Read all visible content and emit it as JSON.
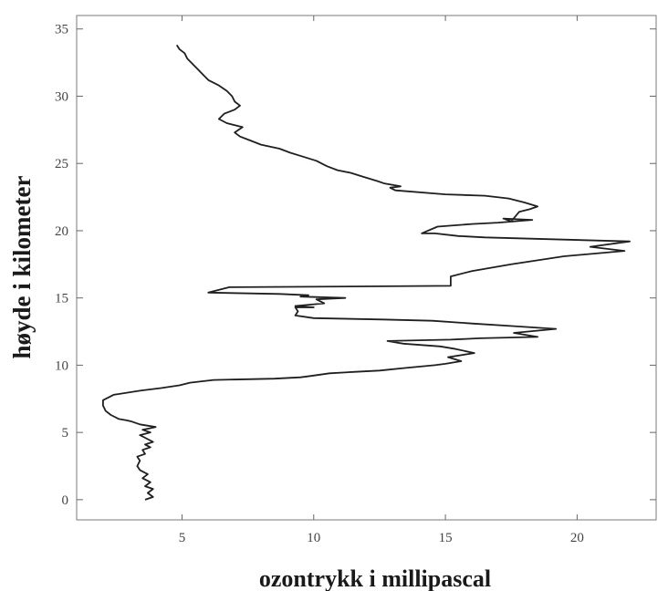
{
  "chart_data": {
    "type": "line",
    "title": "",
    "xlabel": "ozontrykk i millipascal",
    "ylabel": "høyde i kilometer",
    "xlim": [
      1,
      23
    ],
    "ylim": [
      -1.5,
      36
    ],
    "xticks": [
      5,
      10,
      15,
      20
    ],
    "yticks": [
      0,
      5,
      10,
      15,
      20,
      25,
      30,
      35
    ],
    "grid": false,
    "legend": "none",
    "line_color": "#1f1f1f",
    "series": [
      {
        "points": [
          [
            3.6,
            0.0
          ],
          [
            3.9,
            0.2
          ],
          [
            3.7,
            0.5
          ],
          [
            3.9,
            0.8
          ],
          [
            3.6,
            1.0
          ],
          [
            3.8,
            1.3
          ],
          [
            3.5,
            1.6
          ],
          [
            3.7,
            1.9
          ],
          [
            3.4,
            2.2
          ],
          [
            3.3,
            2.5
          ],
          [
            3.4,
            2.9
          ],
          [
            3.3,
            3.2
          ],
          [
            3.6,
            3.4
          ],
          [
            3.5,
            3.7
          ],
          [
            3.8,
            3.9
          ],
          [
            3.6,
            4.1
          ],
          [
            3.9,
            4.3
          ],
          [
            3.6,
            4.6
          ],
          [
            3.4,
            4.8
          ],
          [
            3.8,
            5.0
          ],
          [
            3.5,
            5.2
          ],
          [
            4.0,
            5.4
          ],
          [
            3.4,
            5.6
          ],
          [
            3.1,
            5.8
          ],
          [
            2.9,
            5.9
          ],
          [
            2.6,
            6.0
          ],
          [
            2.3,
            6.3
          ],
          [
            2.1,
            6.6
          ],
          [
            2.0,
            7.0
          ],
          [
            2.0,
            7.4
          ],
          [
            2.4,
            7.8
          ],
          [
            3.4,
            8.1
          ],
          [
            4.2,
            8.3
          ],
          [
            4.9,
            8.5
          ],
          [
            5.3,
            8.7
          ],
          [
            6.2,
            8.9
          ],
          [
            8.5,
            9.0
          ],
          [
            9.5,
            9.1
          ],
          [
            9.9,
            9.2
          ],
          [
            10.6,
            9.4
          ],
          [
            11.5,
            9.5
          ],
          [
            12.5,
            9.6
          ],
          [
            13.5,
            9.8
          ],
          [
            14.6,
            10.0
          ],
          [
            15.0,
            10.1
          ],
          [
            15.6,
            10.3
          ],
          [
            15.1,
            10.6
          ],
          [
            16.1,
            10.9
          ],
          [
            15.4,
            11.2
          ],
          [
            14.8,
            11.4
          ],
          [
            13.4,
            11.6
          ],
          [
            12.8,
            11.8
          ],
          [
            15.2,
            11.9
          ],
          [
            16.3,
            12.0
          ],
          [
            18.5,
            12.1
          ],
          [
            17.6,
            12.4
          ],
          [
            19.2,
            12.7
          ],
          [
            17.6,
            12.9
          ],
          [
            16.0,
            13.1
          ],
          [
            14.5,
            13.3
          ],
          [
            12.6,
            13.4
          ],
          [
            10.0,
            13.5
          ],
          [
            9.3,
            13.7
          ],
          [
            9.4,
            14.0
          ],
          [
            9.3,
            14.3
          ],
          [
            10.0,
            14.3
          ],
          [
            9.3,
            14.4
          ],
          [
            10.4,
            14.6
          ],
          [
            10.1,
            14.9
          ],
          [
            11.2,
            15.0
          ],
          [
            9.5,
            15.1
          ],
          [
            9.8,
            15.2
          ],
          [
            8.7,
            15.3
          ],
          [
            6.0,
            15.4
          ],
          [
            6.8,
            15.8
          ],
          [
            15.2,
            15.9
          ],
          [
            15.2,
            16.6
          ],
          [
            16.0,
            17.0
          ],
          [
            17.5,
            17.5
          ],
          [
            19.5,
            18.1
          ],
          [
            21.8,
            18.5
          ],
          [
            20.5,
            18.8
          ],
          [
            22.0,
            19.2
          ],
          [
            16.5,
            19.5
          ],
          [
            15.5,
            19.6
          ],
          [
            14.6,
            19.8
          ],
          [
            14.1,
            19.8
          ],
          [
            14.7,
            20.3
          ],
          [
            16.0,
            20.5
          ],
          [
            17.0,
            20.6
          ],
          [
            18.3,
            20.8
          ],
          [
            17.2,
            20.9
          ],
          [
            17.5,
            20.7
          ],
          [
            17.8,
            21.4
          ],
          [
            18.2,
            21.6
          ],
          [
            18.5,
            21.8
          ],
          [
            18.0,
            22.1
          ],
          [
            17.4,
            22.4
          ],
          [
            16.5,
            22.6
          ],
          [
            15.0,
            22.7
          ],
          [
            13.1,
            23.0
          ],
          [
            12.9,
            23.2
          ],
          [
            13.3,
            23.3
          ],
          [
            12.7,
            23.5
          ],
          [
            12.4,
            23.7
          ],
          [
            11.9,
            24.0
          ],
          [
            11.4,
            24.3
          ],
          [
            10.9,
            24.5
          ],
          [
            10.5,
            24.8
          ],
          [
            10.1,
            25.2
          ],
          [
            9.6,
            25.5
          ],
          [
            9.1,
            25.8
          ],
          [
            8.7,
            26.1
          ],
          [
            8.0,
            26.4
          ],
          [
            7.6,
            26.7
          ],
          [
            7.2,
            27.0
          ],
          [
            7.0,
            27.3
          ],
          [
            7.3,
            27.7
          ],
          [
            6.7,
            28.0
          ],
          [
            6.4,
            28.3
          ],
          [
            6.6,
            28.7
          ],
          [
            7.0,
            29.0
          ],
          [
            7.2,
            29.3
          ],
          [
            7.0,
            29.6
          ],
          [
            6.9,
            30.0
          ],
          [
            6.7,
            30.4
          ],
          [
            6.4,
            30.8
          ],
          [
            6.0,
            31.2
          ],
          [
            5.8,
            31.6
          ],
          [
            5.6,
            32.0
          ],
          [
            5.4,
            32.4
          ],
          [
            5.2,
            32.8
          ],
          [
            5.1,
            33.2
          ],
          [
            4.9,
            33.5
          ],
          [
            4.8,
            33.8
          ]
        ]
      }
    ]
  }
}
